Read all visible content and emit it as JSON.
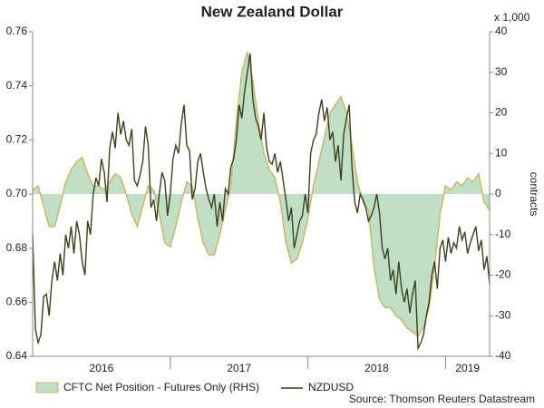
{
  "chart_data": {
    "type": "dual-axis-area-line",
    "title": "New Zealand Dollar",
    "y2_unit": "x 1,000",
    "y2label": "contracts",
    "source": "Source: Thomson Reuters Datastream",
    "xlim": [
      2016,
      2019.32
    ],
    "xticks": [
      {
        "value": 2016.5,
        "label": "2016"
      },
      {
        "value": 2017.5,
        "label": "2017"
      },
      {
        "value": 2018.5,
        "label": "2018"
      },
      {
        "value": 2019.16,
        "label": "2019"
      }
    ],
    "xminorticks": [
      2017,
      2018,
      2019
    ],
    "ylim": [
      0.64,
      0.76
    ],
    "yticks": [
      0.64,
      0.66,
      0.68,
      {
        "value": 0.7,
        "label": "0.70"
      },
      0.72,
      0.74,
      0.76
    ],
    "y2lim": [
      -40,
      40
    ],
    "y2ticks": [
      -40,
      -30,
      -20,
      -10,
      0,
      10,
      20,
      30,
      40
    ],
    "series": [
      {
        "name": "CFTC Net Position - Futures Only (RHS)",
        "kind": "area",
        "axis": "y2",
        "color": "#bfe0c4",
        "edge_color": "#c9b866",
        "x": [
          2016,
          2016.04,
          2016.08,
          2016.12,
          2016.16,
          2016.2,
          2016.24,
          2016.28,
          2016.32,
          2016.36,
          2016.4,
          2016.44,
          2016.48,
          2016.52,
          2016.56,
          2016.6,
          2016.64,
          2016.68,
          2016.72,
          2016.76,
          2016.8,
          2016.84,
          2016.88,
          2016.92,
          2016.96,
          2017,
          2017.04,
          2017.08,
          2017.12,
          2017.16,
          2017.2,
          2017.24,
          2017.28,
          2017.32,
          2017.36,
          2017.4,
          2017.44,
          2017.48,
          2017.52,
          2017.56,
          2017.6,
          2017.64,
          2017.68,
          2017.72,
          2017.76,
          2017.8,
          2017.84,
          2017.88,
          2017.92,
          2017.96,
          2018,
          2018.04,
          2018.08,
          2018.12,
          2018.16,
          2018.2,
          2018.24,
          2018.28,
          2018.32,
          2018.36,
          2018.4,
          2018.44,
          2018.48,
          2018.52,
          2018.56,
          2018.6,
          2018.64,
          2018.68,
          2018.72,
          2018.76,
          2018.8,
          2018.84,
          2018.88,
          2018.92,
          2018.96,
          2019,
          2019.04,
          2019.08,
          2019.12,
          2019.16,
          2019.2,
          2019.24,
          2019.28,
          2019.32
        ],
        "values": [
          1,
          2,
          -3,
          -8,
          -8,
          -3,
          3,
          6,
          8,
          9,
          5,
          2,
          2,
          1,
          3,
          5,
          4,
          0,
          -5,
          -8,
          -3,
          2,
          1,
          -5,
          -12,
          -13,
          -8,
          -2,
          3,
          2,
          -6,
          -12,
          -15,
          -15,
          -10,
          -4,
          2,
          18,
          30,
          35,
          28,
          18,
          10,
          6,
          4,
          -2,
          -12,
          -17,
          -16,
          -12,
          -6,
          2,
          8,
          14,
          20,
          22,
          24,
          20,
          12,
          3,
          -2,
          -4,
          -18,
          -26,
          -28,
          -28,
          -30,
          -31,
          -33,
          -34,
          -35,
          -33,
          -28,
          -18,
          -5,
          2,
          1,
          3,
          2,
          4,
          3,
          5,
          -2,
          -4
        ]
      },
      {
        "name": "NZDUSD",
        "kind": "line",
        "axis": "y",
        "color": "#3d3f1e",
        "x": [
          2016,
          2016.02,
          2016.04,
          2016.06,
          2016.08,
          2016.1,
          2016.12,
          2016.14,
          2016.16,
          2016.18,
          2016.2,
          2016.22,
          2016.24,
          2016.26,
          2016.28,
          2016.3,
          2016.32,
          2016.34,
          2016.36,
          2016.38,
          2016.4,
          2016.42,
          2016.44,
          2016.46,
          2016.48,
          2016.5,
          2016.52,
          2016.54,
          2016.56,
          2016.58,
          2016.6,
          2016.62,
          2016.64,
          2016.66,
          2016.68,
          2016.7,
          2016.72,
          2016.74,
          2016.76,
          2016.78,
          2016.8,
          2016.82,
          2016.84,
          2016.86,
          2016.88,
          2016.9,
          2016.92,
          2016.94,
          2016.96,
          2016.98,
          2017,
          2017.02,
          2017.04,
          2017.06,
          2017.08,
          2017.1,
          2017.12,
          2017.14,
          2017.16,
          2017.18,
          2017.2,
          2017.22,
          2017.24,
          2017.26,
          2017.28,
          2017.3,
          2017.32,
          2017.34,
          2017.36,
          2017.38,
          2017.4,
          2017.42,
          2017.44,
          2017.46,
          2017.48,
          2017.5,
          2017.52,
          2017.54,
          2017.56,
          2017.58,
          2017.6,
          2017.62,
          2017.64,
          2017.66,
          2017.68,
          2017.7,
          2017.72,
          2017.74,
          2017.76,
          2017.78,
          2017.8,
          2017.82,
          2017.84,
          2017.86,
          2017.88,
          2017.9,
          2017.92,
          2017.94,
          2017.96,
          2017.98,
          2018,
          2018.02,
          2018.04,
          2018.06,
          2018.08,
          2018.1,
          2018.12,
          2018.14,
          2018.16,
          2018.18,
          2018.2,
          2018.22,
          2018.24,
          2018.26,
          2018.28,
          2018.3,
          2018.32,
          2018.34,
          2018.36,
          2018.38,
          2018.4,
          2018.42,
          2018.44,
          2018.46,
          2018.48,
          2018.5,
          2018.52,
          2018.54,
          2018.56,
          2018.58,
          2018.6,
          2018.62,
          2018.64,
          2018.66,
          2018.68,
          2018.7,
          2018.72,
          2018.74,
          2018.76,
          2018.78,
          2018.8,
          2018.82,
          2018.84,
          2018.86,
          2018.88,
          2018.9,
          2018.92,
          2018.94,
          2018.96,
          2018.98,
          2019,
          2019.02,
          2019.04,
          2019.06,
          2019.08,
          2019.1,
          2019.12,
          2019.14,
          2019.16,
          2019.18,
          2019.2,
          2019.22,
          2019.24,
          2019.26,
          2019.28,
          2019.3,
          2019.32
        ],
        "values": [
          0.685,
          0.65,
          0.645,
          0.648,
          0.662,
          0.663,
          0.655,
          0.668,
          0.675,
          0.668,
          0.678,
          0.67,
          0.685,
          0.68,
          0.688,
          0.678,
          0.69,
          0.685,
          0.675,
          0.67,
          0.69,
          0.685,
          0.7,
          0.706,
          0.703,
          0.713,
          0.708,
          0.697,
          0.717,
          0.723,
          0.717,
          0.73,
          0.722,
          0.727,
          0.72,
          0.718,
          0.724,
          0.705,
          0.703,
          0.707,
          0.712,
          0.725,
          0.718,
          0.695,
          0.698,
          0.69,
          0.7,
          0.708,
          0.705,
          0.692,
          0.7,
          0.713,
          0.718,
          0.715,
          0.726,
          0.733,
          0.718,
          0.716,
          0.698,
          0.702,
          0.712,
          0.715,
          0.708,
          0.702,
          0.698,
          0.695,
          0.7,
          0.688,
          0.697,
          0.69,
          0.702,
          0.7,
          0.71,
          0.713,
          0.72,
          0.733,
          0.728,
          0.738,
          0.745,
          0.752,
          0.735,
          0.728,
          0.725,
          0.72,
          0.73,
          0.717,
          0.712,
          0.711,
          0.715,
          0.708,
          0.712,
          0.705,
          0.698,
          0.69,
          0.695,
          0.68,
          0.685,
          0.69,
          0.692,
          0.7,
          0.693,
          0.715,
          0.72,
          0.722,
          0.73,
          0.735,
          0.727,
          0.732,
          0.72,
          0.723,
          0.712,
          0.718,
          0.705,
          0.722,
          0.728,
          0.733,
          0.71,
          0.697,
          0.693,
          0.7,
          0.698,
          0.695,
          0.69,
          0.692,
          0.695,
          0.7,
          0.693,
          0.68,
          0.676,
          0.68,
          0.668,
          0.672,
          0.663,
          0.675,
          0.665,
          0.66,
          0.665,
          0.656,
          0.663,
          0.668,
          0.643,
          0.645,
          0.648,
          0.655,
          0.66,
          0.67,
          0.675,
          0.665,
          0.68,
          0.683,
          0.675,
          0.684,
          0.678,
          0.682,
          0.68,
          0.688,
          0.683,
          0.686,
          0.678,
          0.682,
          0.685,
          0.688,
          0.679,
          0.683,
          0.672,
          0.677,
          0.667
        ]
      }
    ]
  }
}
